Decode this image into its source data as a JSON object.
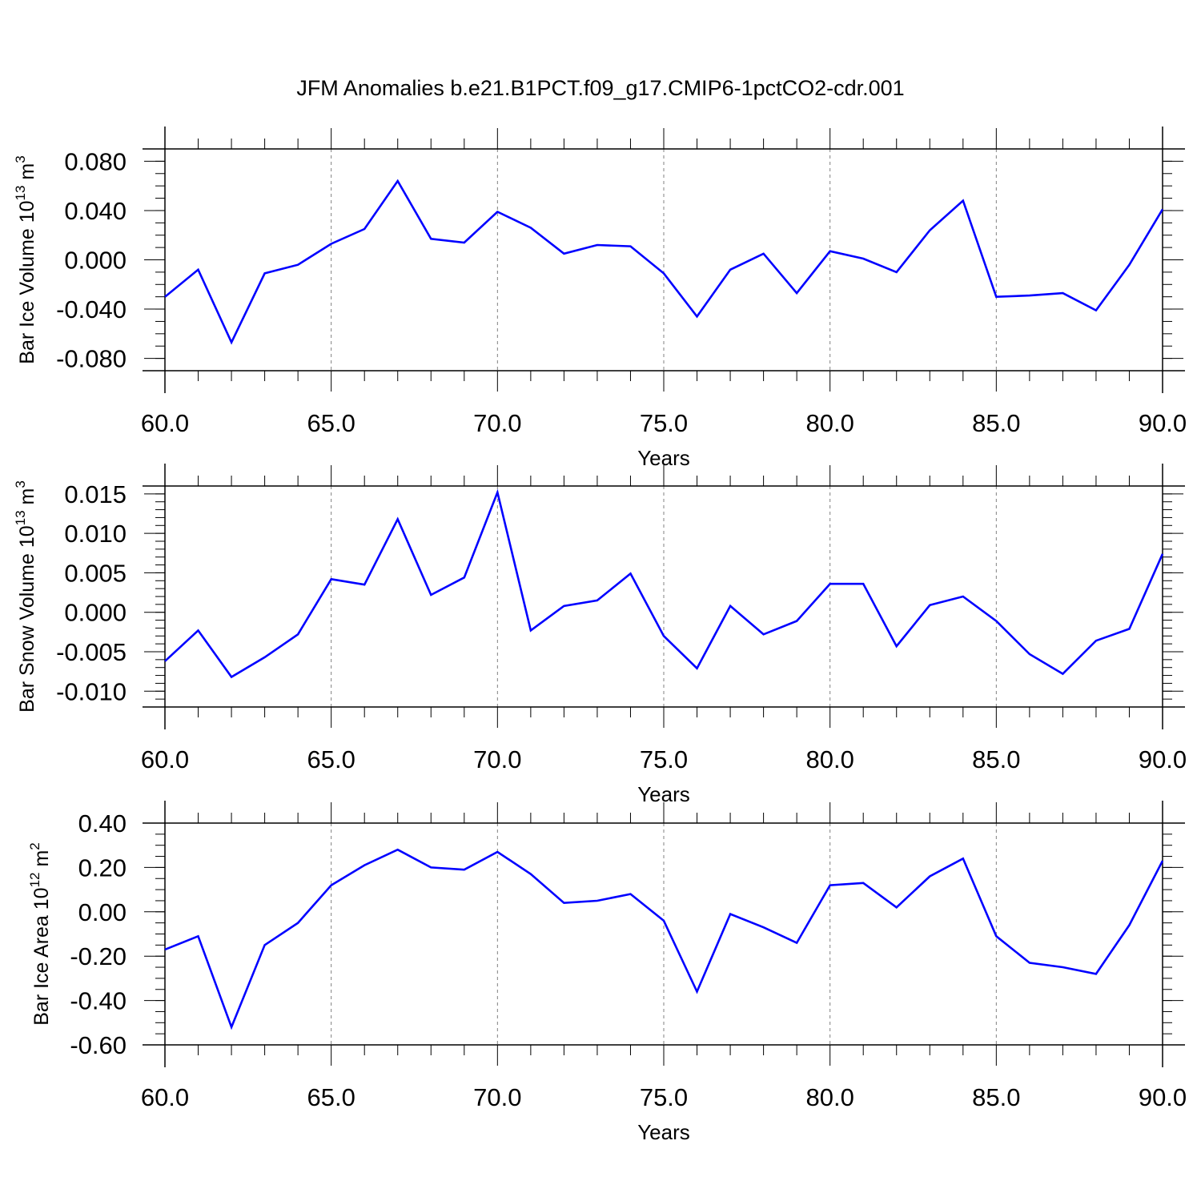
{
  "title": "JFM Anomalies b.e21.B1PCT.f09_g17.CMIP6-1pctCO2-cdr.001",
  "line_color": "#0000ff",
  "chart_data": [
    {
      "type": "line",
      "ylabel": "Bar Ice Volume 10",
      "ylabel_exp": "13",
      "ylabel_unit": " m",
      "ylabel_unit_exp": "3",
      "xlabel": "Years",
      "xlim": [
        60,
        90
      ],
      "ylim": [
        -0.09,
        0.09
      ],
      "xticks": [
        60,
        65,
        70,
        75,
        80,
        85,
        90
      ],
      "xtick_labels": [
        "60.0",
        "65.0",
        "70.0",
        "75.0",
        "80.0",
        "85.0",
        "90.0"
      ],
      "yticks": [
        0.08,
        0.04,
        0.0,
        -0.04,
        -0.08
      ],
      "ytick_labels": [
        "0.080",
        "0.040",
        "0.000",
        "-0.040",
        "-0.080"
      ],
      "yminor_step": 0.01,
      "grid": "vertical dashed at major x ticks",
      "x": [
        60,
        61,
        62,
        63,
        64,
        65,
        66,
        67,
        68,
        69,
        70,
        71,
        72,
        73,
        74,
        75,
        76,
        77,
        78,
        79,
        80,
        81,
        82,
        83,
        84,
        85,
        86,
        87,
        88,
        89,
        90
      ],
      "series": [
        {
          "values": [
            -0.03,
            -0.008,
            -0.067,
            -0.011,
            -0.004,
            0.013,
            0.025,
            0.064,
            0.017,
            0.014,
            0.039,
            0.026,
            0.005,
            0.012,
            0.011,
            -0.011,
            -0.046,
            -0.008,
            0.005,
            -0.027,
            0.007,
            0.001,
            -0.01,
            0.024,
            0.048,
            -0.03,
            -0.029,
            -0.027,
            -0.041,
            -0.004,
            0.041
          ]
        }
      ]
    },
    {
      "type": "line",
      "ylabel": "Bar Snow Volume 10",
      "ylabel_exp": "13",
      "ylabel_unit": " m",
      "ylabel_unit_exp": "3",
      "xlabel": "Years",
      "xlim": [
        60,
        90
      ],
      "ylim": [
        -0.012,
        0.016
      ],
      "xticks": [
        60,
        65,
        70,
        75,
        80,
        85,
        90
      ],
      "xtick_labels": [
        "60.0",
        "65.0",
        "70.0",
        "75.0",
        "80.0",
        "85.0",
        "90.0"
      ],
      "yticks": [
        0.015,
        0.01,
        0.005,
        0.0,
        -0.005,
        -0.01
      ],
      "ytick_labels": [
        "0.015",
        "0.010",
        "0.005",
        "0.000",
        "-0.005",
        "-0.010"
      ],
      "yminor_step": 0.001,
      "grid": "vertical dashed at major x ticks",
      "x": [
        60,
        61,
        62,
        63,
        64,
        65,
        66,
        67,
        68,
        69,
        70,
        71,
        72,
        73,
        74,
        75,
        76,
        77,
        78,
        79,
        80,
        81,
        82,
        83,
        84,
        85,
        86,
        87,
        88,
        89,
        90
      ],
      "series": [
        {
          "values": [
            -0.0062,
            -0.0023,
            -0.0082,
            -0.0057,
            -0.0028,
            0.0042,
            0.0035,
            0.0118,
            0.0022,
            0.0044,
            0.0152,
            -0.0023,
            0.0008,
            0.0015,
            0.0049,
            -0.003,
            -0.0071,
            0.0008,
            -0.0028,
            -0.0011,
            0.0036,
            0.0036,
            -0.0043,
            0.0009,
            0.002,
            -0.0011,
            -0.0053,
            -0.0078,
            -0.0036,
            -0.0021,
            0.0074
          ]
        }
      ]
    },
    {
      "type": "line",
      "ylabel": "Bar Ice Area 10",
      "ylabel_exp": "12",
      "ylabel_unit": " m",
      "ylabel_unit_exp": "2",
      "xlabel": "Years",
      "xlim": [
        60,
        90
      ],
      "ylim": [
        -0.6,
        0.4
      ],
      "xticks": [
        60,
        65,
        70,
        75,
        80,
        85,
        90
      ],
      "xtick_labels": [
        "60.0",
        "65.0",
        "70.0",
        "75.0",
        "80.0",
        "85.0",
        "90.0"
      ],
      "yticks": [
        0.4,
        0.2,
        0.0,
        -0.2,
        -0.4,
        -0.6
      ],
      "ytick_labels": [
        "0.40",
        "0.20",
        "0.00",
        "-0.20",
        "-0.40",
        "-0.60"
      ],
      "yminor_step": 0.05,
      "grid": "vertical dashed at major x ticks",
      "x": [
        60,
        61,
        62,
        63,
        64,
        65,
        66,
        67,
        68,
        69,
        70,
        71,
        72,
        73,
        74,
        75,
        76,
        77,
        78,
        79,
        80,
        81,
        82,
        83,
        84,
        85,
        86,
        87,
        88,
        89,
        90
      ],
      "series": [
        {
          "values": [
            -0.17,
            -0.11,
            -0.52,
            -0.15,
            -0.05,
            0.12,
            0.21,
            0.28,
            0.2,
            0.19,
            0.27,
            0.17,
            0.04,
            0.05,
            0.08,
            -0.04,
            -0.36,
            -0.01,
            -0.07,
            -0.14,
            0.12,
            0.13,
            0.02,
            0.16,
            0.24,
            -0.11,
            -0.23,
            -0.25,
            -0.28,
            -0.06,
            0.23
          ]
        }
      ]
    }
  ]
}
